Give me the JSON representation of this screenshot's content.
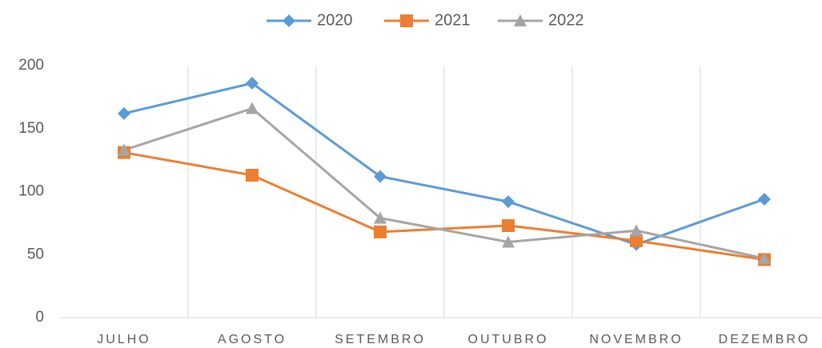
{
  "chart_data": {
    "type": "line",
    "categories": [
      "JULHO",
      "AGOSTO",
      "SETEMBRO",
      "OUTUBRO",
      "NOVEMBRO",
      "DEZEMBRO"
    ],
    "series": [
      {
        "name": "2020",
        "color": "#5b9bd5",
        "marker": "diamond",
        "values": [
          162,
          186,
          112,
          92,
          58,
          94
        ]
      },
      {
        "name": "2021",
        "color": "#ed7d31",
        "marker": "square",
        "values": [
          131,
          113,
          68,
          73,
          61,
          46
        ]
      },
      {
        "name": "2022",
        "color": "#a5a5a5",
        "marker": "triangle",
        "values": [
          133,
          166,
          79,
          60,
          69,
          47
        ]
      }
    ],
    "ylim": [
      0,
      200
    ],
    "yticks": [
      0,
      50,
      100,
      150,
      200
    ],
    "legend": "top"
  }
}
